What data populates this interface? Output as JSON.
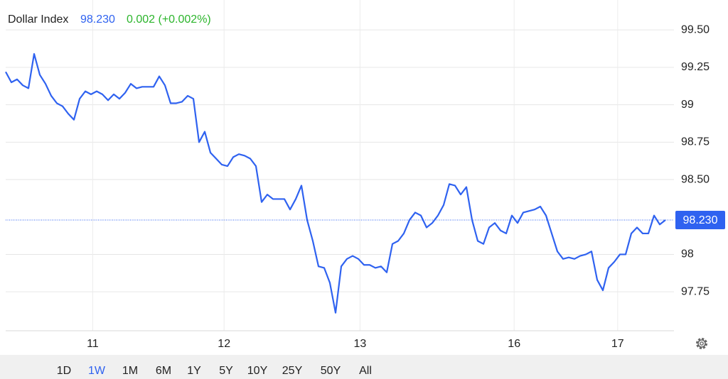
{
  "chart_data": {
    "type": "line",
    "title": "Dollar Index",
    "price_label": "98.230",
    "change_label": "0.002 (+0.002%)",
    "current_value": 98.23,
    "xlim": [
      0,
      117.5
    ],
    "ylim": [
      97.49,
      99.7
    ],
    "xticks": [
      {
        "value": 15.3,
        "label": "11"
      },
      {
        "value": 38.4,
        "label": "12"
      },
      {
        "value": 62.3,
        "label": "13"
      },
      {
        "value": 89.4,
        "label": "16"
      },
      {
        "value": 107.6,
        "label": "17"
      }
    ],
    "yticks": [
      {
        "value": 99.5,
        "label": "99.50"
      },
      99.25,
      99,
      98.75,
      {
        "value": 98.5,
        "label": "98.50"
      },
      98,
      97.75
    ],
    "grid": true,
    "series": [
      {
        "color": "#2f62f0",
        "values": [
          99.22,
          99.15,
          99.17,
          99.13,
          99.11,
          99.34,
          99.2,
          99.14,
          99.06,
          99.01,
          98.99,
          98.94,
          98.9,
          99.04,
          99.09,
          99.07,
          99.09,
          99.07,
          99.03,
          99.07,
          99.04,
          99.08,
          99.14,
          99.11,
          99.12,
          99.12,
          99.12,
          99.19,
          99.13,
          99.01,
          99.01,
          99.02,
          99.06,
          99.04,
          98.75,
          98.82,
          98.68,
          98.64,
          98.6,
          98.59,
          98.65,
          98.67,
          98.66,
          98.64,
          98.59,
          98.35,
          98.4,
          98.37,
          98.37,
          98.37,
          98.3,
          98.37,
          98.46,
          98.23,
          98.09,
          97.92,
          97.91,
          97.81,
          97.61,
          97.92,
          97.97,
          97.99,
          97.97,
          97.93,
          97.93,
          97.91,
          97.92,
          97.88,
          98.07,
          98.09,
          98.14,
          98.23,
          98.28,
          98.26,
          98.18,
          98.21,
          98.26,
          98.33,
          98.47,
          98.46,
          98.4,
          98.45,
          98.23,
          98.09,
          98.07,
          98.18,
          98.21,
          98.16,
          98.14,
          98.26,
          98.21,
          98.28,
          98.29,
          98.3,
          98.32,
          98.26,
          98.14,
          98.02,
          97.97,
          97.98,
          97.97,
          97.99,
          98.0,
          98.02,
          97.83,
          97.76,
          97.91,
          97.95,
          98.0,
          98.0,
          98.14,
          98.18,
          98.14,
          98.14,
          98.26,
          98.2,
          98.23
        ]
      }
    ],
    "ranges": [
      "1D",
      "1W",
      "1M",
      "6M",
      "1Y",
      "5Y",
      "10Y",
      "25Y",
      "50Y",
      "All"
    ],
    "active_range": "1W"
  }
}
